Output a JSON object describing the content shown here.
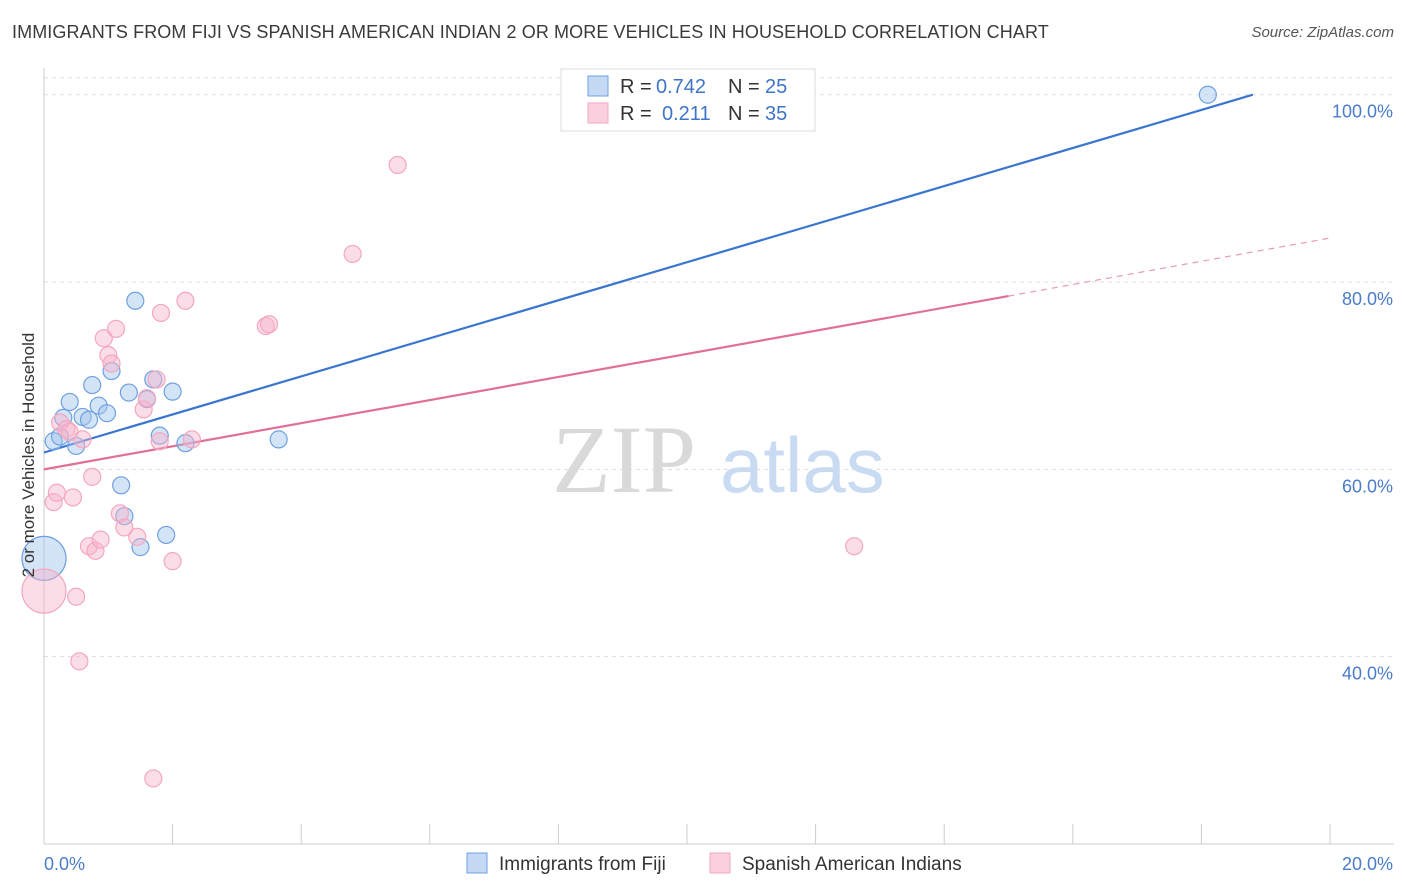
{
  "title": "IMMIGRANTS FROM FIJI VS SPANISH AMERICAN INDIAN 2 OR MORE VEHICLES IN HOUSEHOLD CORRELATION CHART",
  "source": "Source: ZipAtlas.com",
  "watermark": {
    "zip": "ZIP",
    "atlas": "atlas"
  },
  "chart_data": {
    "type": "scatter",
    "title": "IMMIGRANTS FROM FIJI VS SPANISH AMERICAN INDIAN 2 OR MORE VEHICLES IN HOUSEHOLD CORRELATION CHART",
    "xlabel": "",
    "ylabel": "2 or more Vehicles in Household",
    "xlim": [
      0,
      20
    ],
    "ylim": [
      20,
      102
    ],
    "x_tick_labels": [
      "0.0%",
      "20.0%"
    ],
    "y_ticks": [
      40,
      60,
      80,
      100
    ],
    "y_tick_labels": [
      "40.0%",
      "60.0%",
      "80.0%",
      "100.0%"
    ],
    "grid": true,
    "legend_position": "top-center",
    "series": [
      {
        "name": "Immigrants from Fiji",
        "color": "#6fa0e0",
        "line_color": "#3a76d0",
        "R": "0.742",
        "N": "25",
        "trend": {
          "x": [
            0,
            18.8
          ],
          "y": [
            61.8,
            100
          ]
        },
        "points": [
          {
            "x": 0.0,
            "y": 50.5,
            "big": true
          },
          {
            "x": 0.15,
            "y": 63.0
          },
          {
            "x": 0.25,
            "y": 63.5
          },
          {
            "x": 0.3,
            "y": 65.5
          },
          {
            "x": 0.4,
            "y": 67.2
          },
          {
            "x": 0.5,
            "y": 62.5
          },
          {
            "x": 0.6,
            "y": 65.6
          },
          {
            "x": 0.7,
            "y": 65.3
          },
          {
            "x": 0.75,
            "y": 69.0
          },
          {
            "x": 0.85,
            "y": 66.8
          },
          {
            "x": 0.98,
            "y": 66.0
          },
          {
            "x": 1.05,
            "y": 70.5
          },
          {
            "x": 1.2,
            "y": 58.3
          },
          {
            "x": 1.25,
            "y": 55.0
          },
          {
            "x": 1.32,
            "y": 68.2
          },
          {
            "x": 1.42,
            "y": 78.0
          },
          {
            "x": 1.5,
            "y": 51.7
          },
          {
            "x": 1.6,
            "y": 67.5
          },
          {
            "x": 1.7,
            "y": 69.6
          },
          {
            "x": 1.8,
            "y": 63.6
          },
          {
            "x": 1.9,
            "y": 53.0
          },
          {
            "x": 2.0,
            "y": 68.3
          },
          {
            "x": 2.2,
            "y": 62.8
          },
          {
            "x": 3.65,
            "y": 63.2
          },
          {
            "x": 18.1,
            "y": 100.0
          }
        ]
      },
      {
        "name": "Spanish American Indians",
        "color": "#f4a7c0",
        "line_color": "#e07098",
        "R": "0.211",
        "N": "35",
        "trend": {
          "x": [
            0,
            15.0
          ],
          "y": [
            60.0,
            78.5
          ]
        },
        "trend_dashed": {
          "x": [
            15.0,
            20.0
          ],
          "y": [
            78.5,
            84.7
          ]
        },
        "points": [
          {
            "x": 0.0,
            "y": 47.0,
            "big": true
          },
          {
            "x": 0.15,
            "y": 56.5
          },
          {
            "x": 0.2,
            "y": 57.5
          },
          {
            "x": 0.25,
            "y": 65.0
          },
          {
            "x": 0.35,
            "y": 64.3
          },
          {
            "x": 0.4,
            "y": 64.0
          },
          {
            "x": 0.45,
            "y": 57.0
          },
          {
            "x": 0.5,
            "y": 46.4
          },
          {
            "x": 0.55,
            "y": 39.5
          },
          {
            "x": 0.6,
            "y": 63.2
          },
          {
            "x": 0.7,
            "y": 51.8
          },
          {
            "x": 0.75,
            "y": 59.2
          },
          {
            "x": 0.8,
            "y": 51.3
          },
          {
            "x": 0.88,
            "y": 52.5
          },
          {
            "x": 0.93,
            "y": 74.0
          },
          {
            "x": 1.0,
            "y": 72.2
          },
          {
            "x": 1.05,
            "y": 71.3
          },
          {
            "x": 1.12,
            "y": 75.0
          },
          {
            "x": 1.18,
            "y": 55.3
          },
          {
            "x": 1.25,
            "y": 53.8
          },
          {
            "x": 1.45,
            "y": 52.8
          },
          {
            "x": 1.55,
            "y": 66.4
          },
          {
            "x": 1.6,
            "y": 67.6
          },
          {
            "x": 1.7,
            "y": 27.0
          },
          {
            "x": 1.75,
            "y": 69.6
          },
          {
            "x": 1.8,
            "y": 63.0
          },
          {
            "x": 1.82,
            "y": 76.7
          },
          {
            "x": 2.0,
            "y": 50.2
          },
          {
            "x": 2.2,
            "y": 78.0
          },
          {
            "x": 2.3,
            "y": 63.2
          },
          {
            "x": 3.45,
            "y": 75.3
          },
          {
            "x": 3.5,
            "y": 75.5
          },
          {
            "x": 4.8,
            "y": 83.0
          },
          {
            "x": 5.5,
            "y": 92.5
          },
          {
            "x": 12.6,
            "y": 51.8
          }
        ]
      }
    ]
  }
}
